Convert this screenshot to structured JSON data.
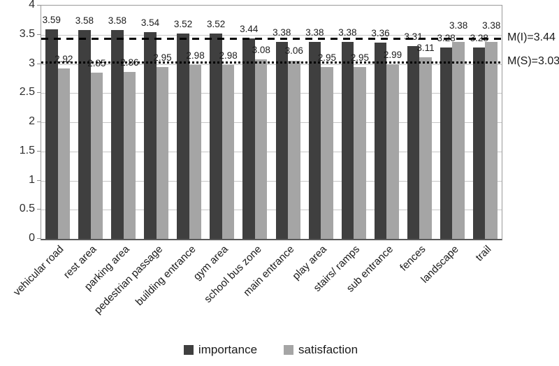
{
  "chart_data": {
    "type": "bar",
    "title": "",
    "xlabel": "",
    "ylabel": "",
    "categories": [
      "vehicular road",
      "rest area",
      "parking area",
      "pedestrian passage",
      "building entrance",
      "gym area",
      "school bus zone",
      "main entrance",
      "play area",
      "stairs/ ramps",
      "sub entrance",
      "fences",
      "landscape",
      "trail"
    ],
    "series": [
      {
        "name": "importance",
        "color": "#3f3f3f",
        "values": [
          3.59,
          3.58,
          3.58,
          3.54,
          3.52,
          3.52,
          3.44,
          3.38,
          3.38,
          3.38,
          3.36,
          3.31,
          3.28,
          3.28
        ]
      },
      {
        "name": "satisfaction",
        "color": "#a5a5a5",
        "values": [
          2.92,
          2.85,
          2.86,
          2.95,
          2.98,
          2.98,
          3.08,
          3.06,
          2.95,
          2.95,
          2.99,
          3.11,
          3.38,
          3.38
        ]
      }
    ],
    "ylim": [
      0,
      4
    ],
    "ytick_step": 0.5,
    "ytick_labels": [
      "0",
      "0.5",
      "1",
      "1.5",
      "2",
      "2.5",
      "3",
      "3.5",
      "4"
    ],
    "grid": true,
    "legend_position": "bottom",
    "data_labels": true,
    "reference_lines": [
      {
        "label": "M(I)=3.44",
        "value": 3.44,
        "style": "dashed",
        "color": "#000000"
      },
      {
        "label": "M(S)=3.03",
        "value": 3.03,
        "style": "dotted",
        "color": "#000000"
      }
    ]
  }
}
